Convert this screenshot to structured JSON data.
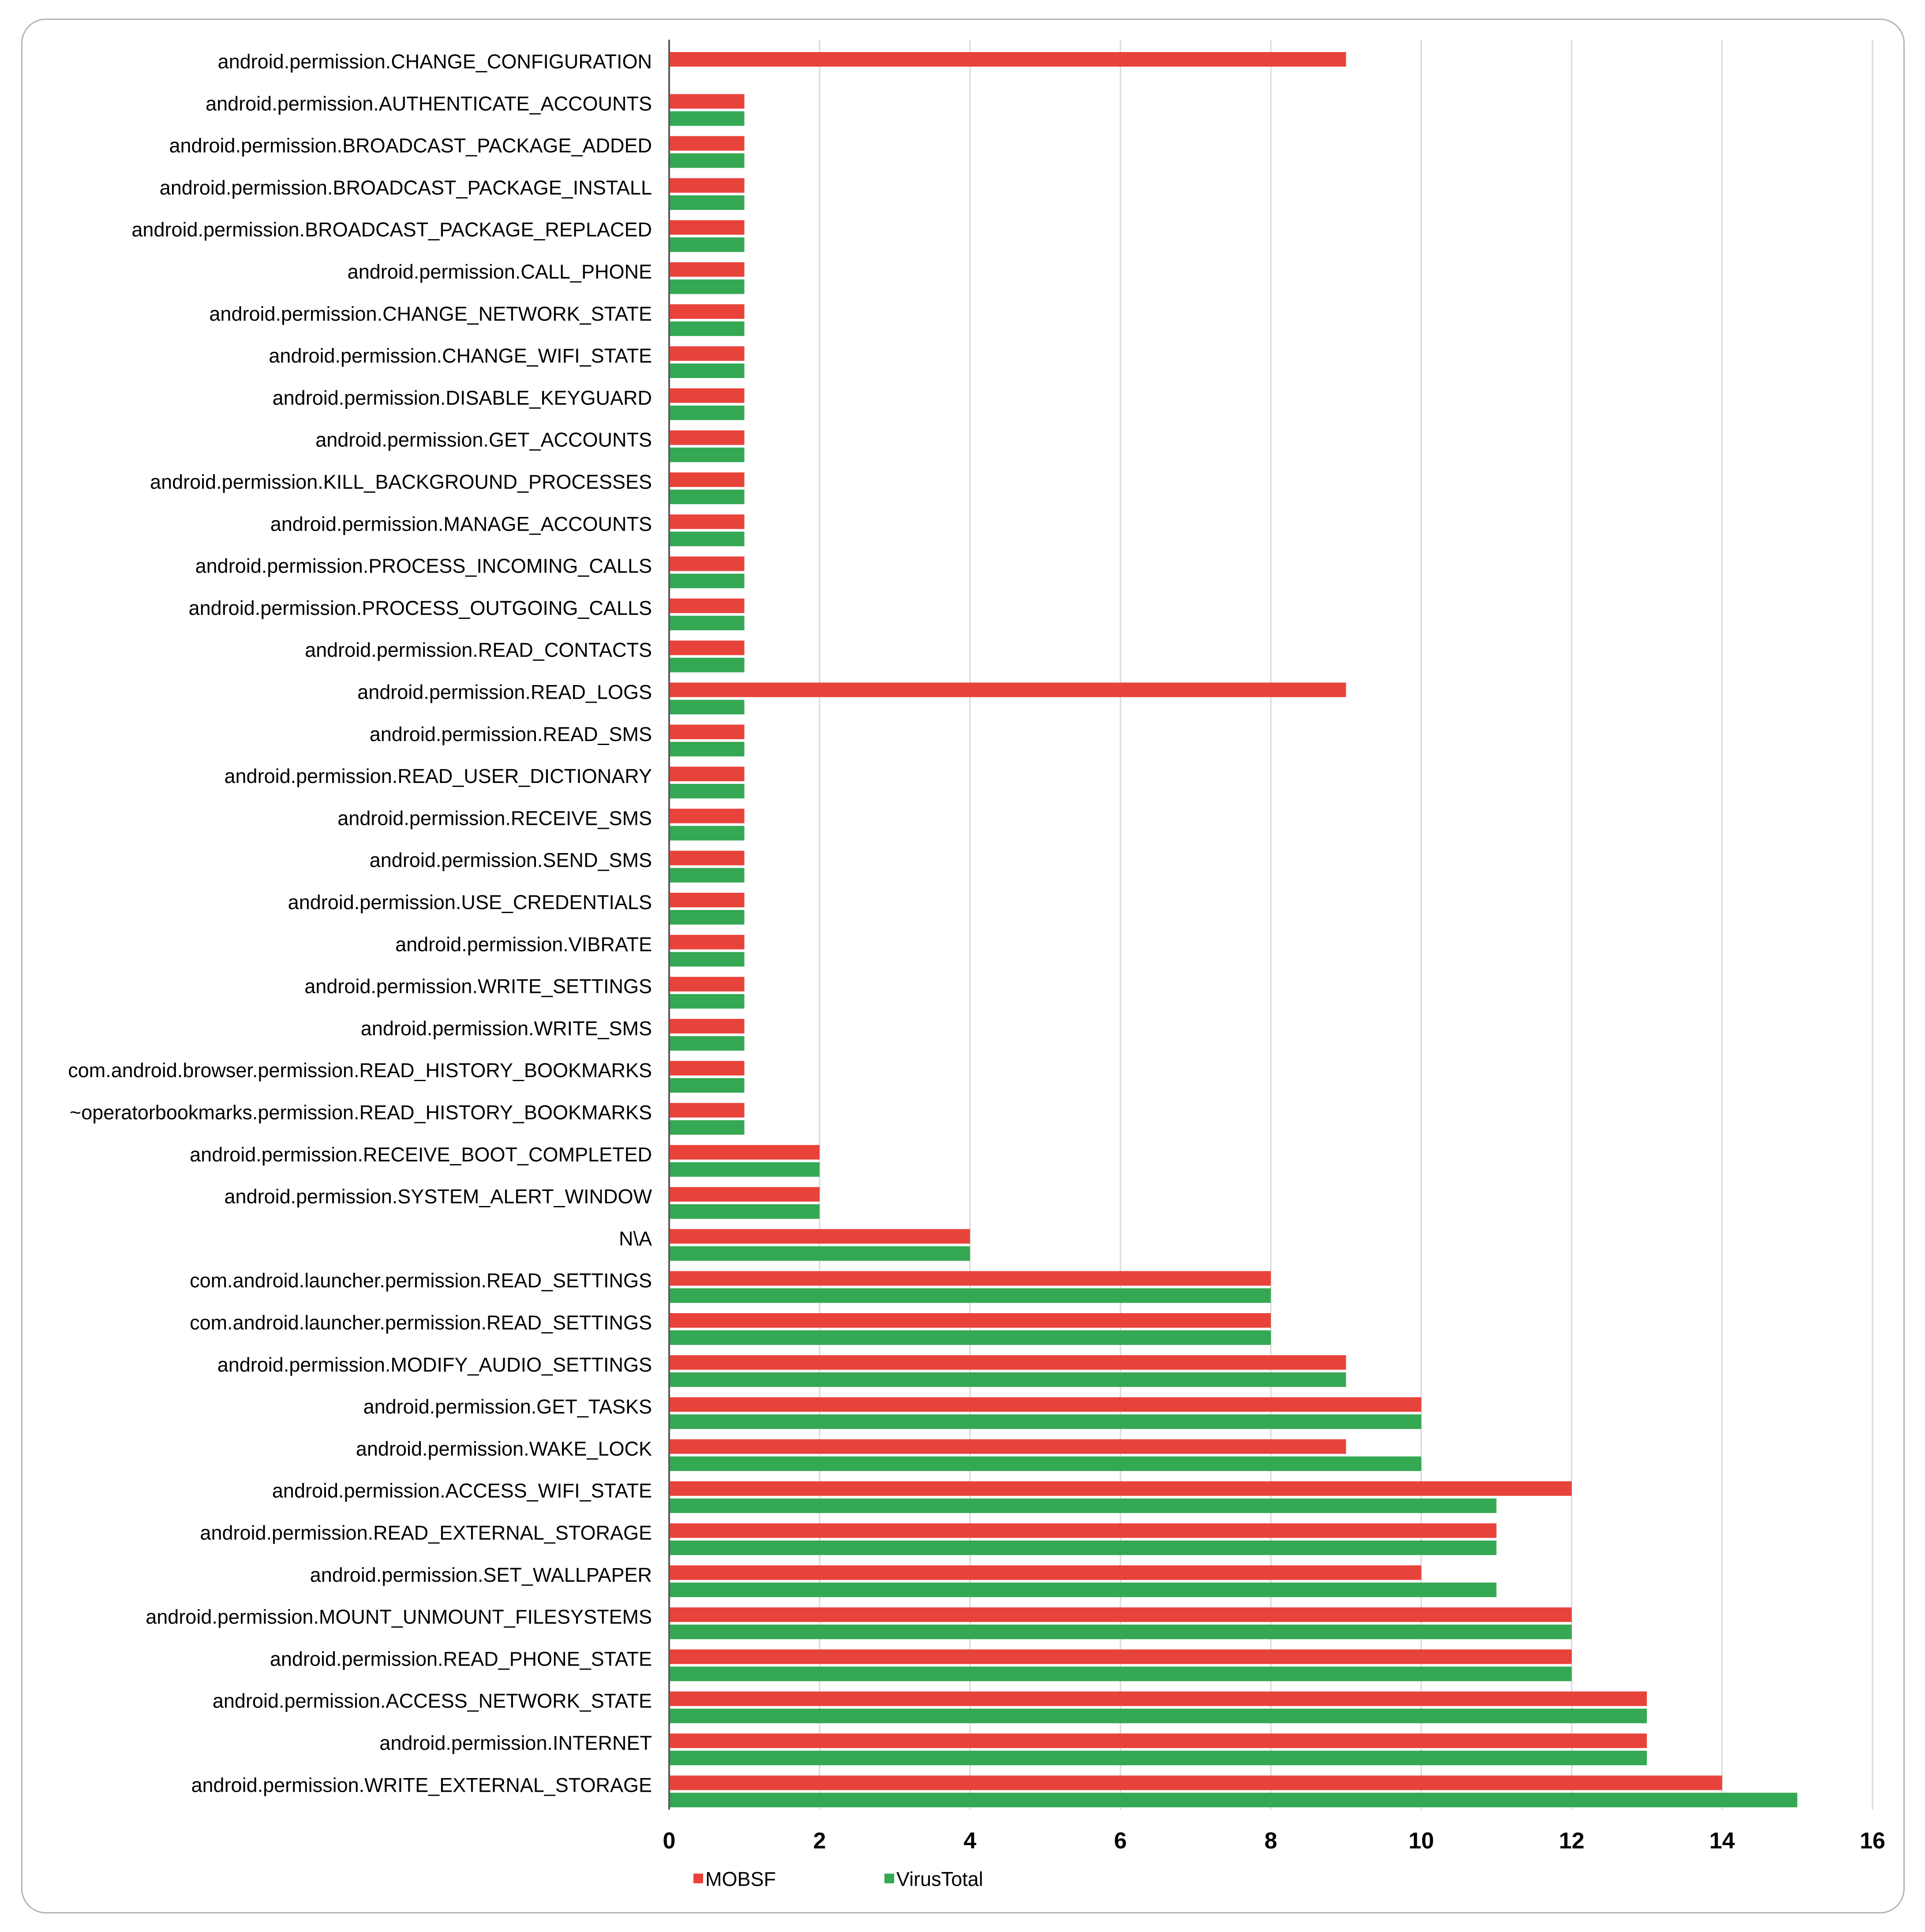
{
  "colors": {
    "mobsf": "#e8433a",
    "virustotal": "#34a853",
    "grid": "#d9d9d9",
    "axis": "#595959"
  },
  "chart_data": {
    "type": "bar",
    "orientation": "horizontal",
    "title": "",
    "xlabel": "",
    "ylabel": "",
    "xlim": [
      0,
      16
    ],
    "xticks": [
      0,
      2,
      4,
      6,
      8,
      10,
      12,
      14,
      16
    ],
    "grid": true,
    "legend_position": "bottom",
    "categories": [
      "android.permission.CHANGE_CONFIGURATION",
      "android.permission.AUTHENTICATE_ACCOUNTS",
      "android.permission.BROADCAST_PACKAGE_ADDED",
      "android.permission.BROADCAST_PACKAGE_INSTALL",
      "android.permission.BROADCAST_PACKAGE_REPLACED",
      "android.permission.CALL_PHONE",
      "android.permission.CHANGE_NETWORK_STATE",
      "android.permission.CHANGE_WIFI_STATE",
      "android.permission.DISABLE_KEYGUARD",
      "android.permission.GET_ACCOUNTS",
      "android.permission.KILL_BACKGROUND_PROCESSES",
      "android.permission.MANAGE_ACCOUNTS",
      "android.permission.PROCESS_INCOMING_CALLS",
      "android.permission.PROCESS_OUTGOING_CALLS",
      "android.permission.READ_CONTACTS",
      "android.permission.READ_LOGS",
      "android.permission.READ_SMS",
      "android.permission.READ_USER_DICTIONARY",
      "android.permission.RECEIVE_SMS",
      "android.permission.SEND_SMS",
      "android.permission.USE_CREDENTIALS",
      "android.permission.VIBRATE",
      "android.permission.WRITE_SETTINGS",
      "android.permission.WRITE_SMS",
      "com.android.browser.permission.READ_HISTORY_BOOKMARKS",
      "~operatorbookmarks.permission.READ_HISTORY_BOOKMARKS",
      "android.permission.RECEIVE_BOOT_COMPLETED",
      "android.permission.SYSTEM_ALERT_WINDOW",
      "N\\A",
      "com.android.launcher.permission.READ_SETTINGS",
      "com.android.launcher.permission.READ_SETTINGS",
      "android.permission.MODIFY_AUDIO_SETTINGS",
      "android.permission.GET_TASKS",
      "android.permission.WAKE_LOCK",
      "android.permission.ACCESS_WIFI_STATE",
      "android.permission.READ_EXTERNAL_STORAGE",
      "android.permission.SET_WALLPAPER",
      "android.permission.MOUNT_UNMOUNT_FILESYSTEMS",
      "android.permission.READ_PHONE_STATE",
      "android.permission.ACCESS_NETWORK_STATE",
      "android.permission.INTERNET",
      "android.permission.WRITE_EXTERNAL_STORAGE"
    ],
    "series": [
      {
        "name": "MOBSF",
        "values": [
          9,
          1,
          1,
          1,
          1,
          1,
          1,
          1,
          1,
          1,
          1,
          1,
          1,
          1,
          1,
          9,
          1,
          1,
          1,
          1,
          1,
          1,
          1,
          1,
          1,
          1,
          2,
          2,
          4,
          8,
          8,
          9,
          10,
          9,
          12,
          11,
          10,
          12,
          12,
          13,
          13,
          14
        ]
      },
      {
        "name": "VirusTotal",
        "values": [
          0,
          1,
          1,
          1,
          1,
          1,
          1,
          1,
          1,
          1,
          1,
          1,
          1,
          1,
          1,
          1,
          1,
          1,
          1,
          1,
          1,
          1,
          1,
          1,
          1,
          1,
          2,
          2,
          4,
          8,
          8,
          9,
          10,
          10,
          11,
          11,
          11,
          12,
          12,
          13,
          13,
          15
        ]
      }
    ]
  }
}
